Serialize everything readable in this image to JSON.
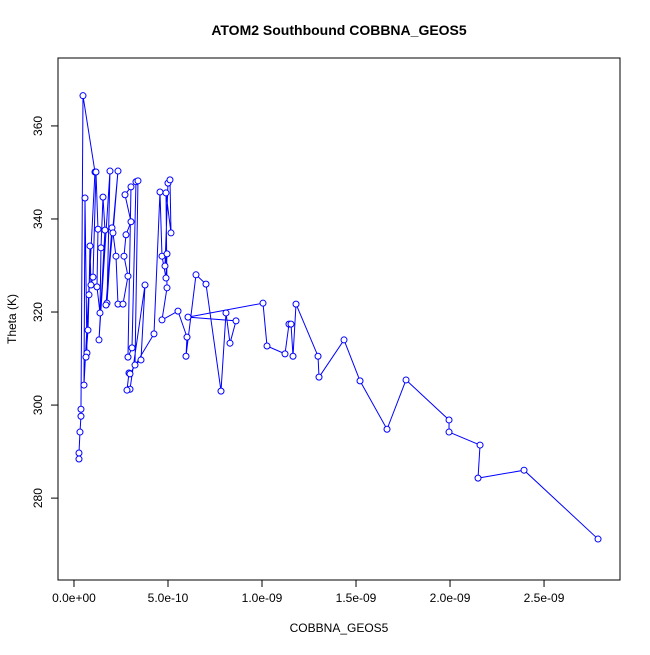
{
  "chart_data": {
    "type": "line",
    "markers": true,
    "title": "ATOM2 Southbound COBBNA_GEOS5",
    "xlabel": "COBBNA_GEOS5",
    "ylabel": "Theta (K)",
    "color": "#0000ff",
    "xlim": [
      -8.5e-11,
      2.904e-09
    ],
    "ylim": [
      262.4,
      374.6
    ],
    "xticks": [
      {
        "value": 0,
        "label": "0.0e+00"
      },
      {
        "value": 5e-10,
        "label": "5.0e-10"
      },
      {
        "value": 1e-09,
        "label": "1.0e-09"
      },
      {
        "value": 1.5e-09,
        "label": "1.5e-09"
      },
      {
        "value": 2e-09,
        "label": "2.0e-09"
      },
      {
        "value": 2.5e-09,
        "label": "2.5e-09"
      }
    ],
    "yticks": [
      280,
      300,
      320,
      340,
      360
    ],
    "x": [
      2.66e-11,
      2.66e-11,
      3.19e-11,
      3.72e-11,
      3.72e-11,
      4.79e-11,
      1.117e-10,
      5.32e-11,
      5.85e-11,
      6.91e-11,
      6.38e-11,
      7.45e-11,
      7.98e-11,
      8.51e-11,
      9.04e-11,
      1.011e-10,
      1.17e-10,
      1.277e-10,
      1.223e-10,
      1.383e-10,
      1.436e-10,
      1.543e-10,
      1.649e-10,
      1.33e-10,
      1.915e-10,
      1.755e-10,
      2.021e-10,
      1.702e-10,
      2.34e-10,
      2.074e-10,
      2.234e-10,
      2.34e-10,
      2.606e-10,
      2.872e-10,
      2.66e-10,
      2.766e-10,
      3.032e-10,
      2.713e-10,
      3.032e-10,
      2.872e-10,
      3.085e-10,
      3.298e-10,
      3.404e-10,
      3.245e-10,
      3.564e-10,
      3.777e-10,
      2.979e-10,
      2.819e-10,
      2.925e-10,
      2.979e-10,
      4.255e-10,
      4.574e-10,
      4.681e-10,
      4.894e-10,
      4.947e-10,
      4.84e-10,
      5e-10,
      5.106e-10,
      5.16e-10,
      4.894e-10,
      4.947e-10,
      4.681e-10,
      5.532e-10,
      6.011e-10,
      5.957e-10,
      6.489e-10,
      7.021e-10,
      7.819e-10,
      8.085e-10,
      8.298e-10,
      8.617e-10,
      6.064e-10,
      1.0053e-09,
      1.0266e-09,
      1.1223e-09,
      1.1436e-09,
      1.1543e-09,
      1.1649e-09,
      1.1809e-09,
      1.2979e-09,
      1.3032e-09,
      1.4362e-09,
      1.5213e-09,
      1.6649e-09,
      1.766e-09,
      1.9947e-09,
      1.9947e-09,
      2.1596e-09,
      2.1489e-09,
      2.3936e-09,
      2.7872e-09
    ],
    "values": [
      288.4,
      289.7,
      294.2,
      297.6,
      299.1,
      366.5,
      350.1,
      304.3,
      344.5,
      311.2,
      310.3,
      316.1,
      323.7,
      334.2,
      325.8,
      327.5,
      350.1,
      337.8,
      325.4,
      319.8,
      333.8,
      344.7,
      337.6,
      314.0,
      350.3,
      321.9,
      338.1,
      321.5,
      350.3,
      337.0,
      332.0,
      321.7,
      321.7,
      327.7,
      332.0,
      336.6,
      339.4,
      345.2,
      346.9,
      310.3,
      312.3,
      348.0,
      348.2,
      308.6,
      309.7,
      325.8,
      303.4,
      303.2,
      306.9,
      306.7,
      315.3,
      345.8,
      332.0,
      327.3,
      332.5,
      329.9,
      347.7,
      348.4,
      337.0,
      345.6,
      325.2,
      318.3,
      320.2,
      314.6,
      310.5,
      328.0,
      326.0,
      303.0,
      319.8,
      313.3,
      318.1,
      318.9,
      321.9,
      312.7,
      311.0,
      317.4,
      317.4,
      310.5,
      321.7,
      310.5,
      306.0,
      314.0,
      305.2,
      294.8,
      305.4,
      296.8,
      294.2,
      291.4,
      284.3,
      286.0,
      271.2
    ]
  }
}
